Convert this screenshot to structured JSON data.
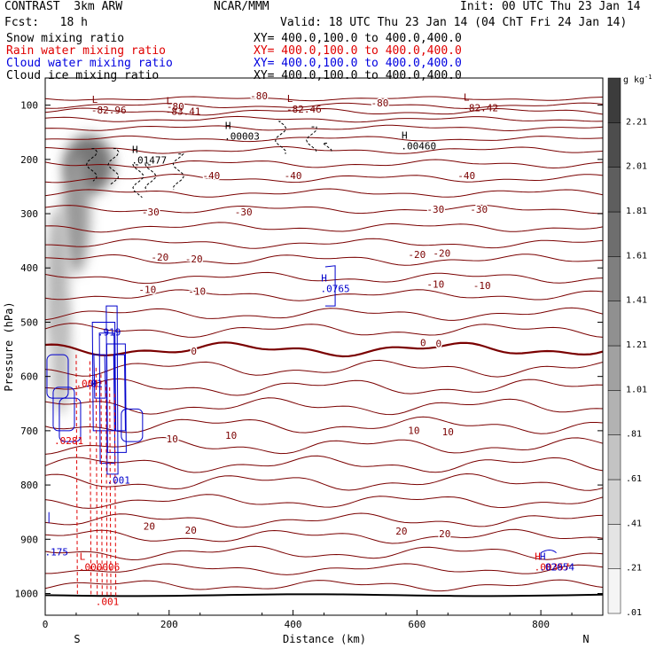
{
  "header": {
    "left1": "CONTRAST  3km ARW",
    "center1": "NCAR/MMM",
    "right1": "Init: 00 UTC Thu 23 Jan 14",
    "left2": "Fcst:   18 h",
    "right2": "Valid: 18 UTC Thu 23 Jan 14 (04 ChT Fri 24 Jan 14)",
    "fields": [
      {
        "name": "Snow mixing ratio",
        "xy": "XY= 400.0,100.0 to 400.0,400.0",
        "color": "#000000"
      },
      {
        "name": "Rain water mixing ratio",
        "xy": "XY= 400.0,100.0 to 400.0,400.0",
        "color": "#e00000"
      },
      {
        "name": "Cloud water mixing ratio",
        "xy": "XY= 400.0,100.0 to 400.0,400.0",
        "color": "#0000e0"
      },
      {
        "name": "Cloud ice mixing ratio",
        "xy": "XY= 400.0,100.0 to 400.0,400.0",
        "color": "#000000"
      }
    ]
  },
  "chart_data": {
    "type": "cross-section",
    "xlabel": "Distance (km)",
    "ylabel": "Pressure (hPa)",
    "xlim": [
      0,
      900
    ],
    "ylim": [
      1040,
      50
    ],
    "xticks": [
      0,
      200,
      400,
      600,
      800
    ],
    "yticks": [
      100,
      200,
      300,
      400,
      500,
      600,
      700,
      800,
      900,
      1000
    ],
    "endpoint_left": "S",
    "endpoint_right": "N",
    "colorbar": {
      "units": "g kg",
      "units_exp": "-1",
      "ticks": [
        "2.21",
        "2.01",
        "1.81",
        "1.61",
        "1.41",
        "1.21",
        "1.01",
        ".81",
        ".61",
        ".41",
        ".21",
        ".01"
      ],
      "levels": [
        0.01,
        0.21,
        0.41,
        0.61,
        0.81,
        1.01,
        1.21,
        1.41,
        1.61,
        1.81,
        2.01,
        2.21,
        2.41
      ]
    },
    "temperature_contours": {
      "color": "#7a0000",
      "lines": [
        {
          "p": 88,
          "amp": 1.5
        },
        {
          "p": 101,
          "amp": 2
        },
        {
          "p": 112,
          "amp": 2.5
        },
        {
          "p": 126,
          "amp": 2
        },
        {
          "p": 142,
          "amp": 2
        },
        {
          "p": 162,
          "amp": 2
        },
        {
          "p": 183,
          "amp": 2.5
        },
        {
          "p": 208,
          "amp": 3
        },
        {
          "p": 235,
          "amp": 3
        },
        {
          "p": 262,
          "amp": 3
        },
        {
          "p": 292,
          "amp": 3
        },
        {
          "p": 325,
          "amp": 3.5
        },
        {
          "p": 355,
          "amp": 3.5
        },
        {
          "p": 385,
          "amp": 4
        },
        {
          "p": 418,
          "amp": 4
        },
        {
          "p": 450,
          "amp": 4
        },
        {
          "p": 485,
          "amp": 4.5
        },
        {
          "p": 515,
          "amp": 5
        },
        {
          "p": 550,
          "amp": 5,
          "bold": true
        },
        {
          "p": 585,
          "amp": 6
        },
        {
          "p": 620,
          "amp": 6
        },
        {
          "p": 655,
          "amp": 6
        },
        {
          "p": 690,
          "amp": 6
        },
        {
          "p": 728,
          "amp": 6
        },
        {
          "p": 762,
          "amp": 6
        },
        {
          "p": 795,
          "amp": 6
        },
        {
          "p": 830,
          "amp": 5
        },
        {
          "p": 865,
          "amp": 5
        },
        {
          "p": 895,
          "amp": 5
        },
        {
          "p": 925,
          "amp": 5
        },
        {
          "p": 955,
          "amp": 4
        },
        {
          "p": 985,
          "amp": 4
        }
      ],
      "labels": [
        {
          "x": 345,
          "p": 83,
          "text": "-80"
        },
        {
          "x": 540,
          "p": 96,
          "text": "-80"
        },
        {
          "x": 210,
          "p": 102,
          "text": "-80"
        },
        {
          "x": 268,
          "p": 230,
          "text": "-40"
        },
        {
          "x": 400,
          "p": 230,
          "text": "-40"
        },
        {
          "x": 680,
          "p": 230,
          "text": "-40"
        },
        {
          "x": 170,
          "p": 297,
          "text": "-30"
        },
        {
          "x": 320,
          "p": 297,
          "text": "-30"
        },
        {
          "x": 630,
          "p": 292,
          "text": "-30"
        },
        {
          "x": 700,
          "p": 292,
          "text": "-30"
        },
        {
          "x": 185,
          "p": 380,
          "text": "-20"
        },
        {
          "x": 240,
          "p": 383,
          "text": "-20"
        },
        {
          "x": 600,
          "p": 375,
          "text": "-20"
        },
        {
          "x": 640,
          "p": 373,
          "text": "-20"
        },
        {
          "x": 165,
          "p": 440,
          "text": "-10"
        },
        {
          "x": 245,
          "p": 443,
          "text": "-10"
        },
        {
          "x": 630,
          "p": 430,
          "text": "-10"
        },
        {
          "x": 705,
          "p": 432,
          "text": "-10"
        },
        {
          "x": 240,
          "p": 553,
          "text": "0"
        },
        {
          "x": 610,
          "p": 538,
          "text": "0"
        },
        {
          "x": 635,
          "p": 539,
          "text": "0"
        },
        {
          "x": 205,
          "p": 715,
          "text": "10"
        },
        {
          "x": 300,
          "p": 708,
          "text": "10"
        },
        {
          "x": 595,
          "p": 699,
          "text": "10"
        },
        {
          "x": 650,
          "p": 702,
          "text": "10"
        },
        {
          "x": 168,
          "p": 876,
          "text": "20"
        },
        {
          "x": 235,
          "p": 883,
          "text": "20"
        },
        {
          "x": 575,
          "p": 885,
          "text": "20"
        },
        {
          "x": 645,
          "p": 890,
          "text": "20"
        }
      ]
    },
    "extrema_labels": [
      {
        "x": 80,
        "p": 96,
        "mark": "L",
        "value": "-82.96",
        "color": "#7a0000"
      },
      {
        "x": 200,
        "p": 98,
        "mark": "L",
        "value": "-83.41",
        "color": "#7a0000"
      },
      {
        "x": 395,
        "p": 94,
        "mark": "L",
        "value": "-82.46",
        "color": "#7a0000"
      },
      {
        "x": 680,
        "p": 92,
        "mark": "L",
        "value": "-82.42",
        "color": "#7a0000"
      },
      {
        "x": 295,
        "p": 144,
        "mark": "H",
        "value": ".00003",
        "color": "#000000"
      },
      {
        "x": 580,
        "p": 162,
        "mark": "H",
        "value": ".00460",
        "color": "#000000"
      },
      {
        "x": 145,
        "p": 188,
        "mark": "H",
        "value": ".01477",
        "color": "#000000"
      },
      {
        "x": 450,
        "p": 425,
        "mark": "H",
        "value": ".0765",
        "color": "#0000cc"
      },
      {
        "x": 90,
        "p": 505,
        "mark": "",
        "value": ".919",
        "color": "#0000cc"
      },
      {
        "x": 55,
        "p": 600,
        "mark": "",
        "value": ".001",
        "color": "#e00000"
      },
      {
        "x": 70,
        "p": 600,
        "mark": "",
        "value": ".01",
        "color": "#0000cc"
      },
      {
        "x": 20,
        "p": 705,
        "mark": "",
        "value": ".0281",
        "color": "#e00000"
      },
      {
        "x": 105,
        "p": 778,
        "mark": "",
        "value": ".001",
        "color": "#0000cc"
      },
      {
        "x": 5,
        "p": 910,
        "mark": "",
        "value": ".175",
        "color": "#0000cc"
      },
      {
        "x": 60,
        "p": 938,
        "mark": "L",
        "value": ".000006",
        "color": "#e00000"
      },
      {
        "x": 87,
        "p": 1002,
        "mark": "",
        "value": ".001",
        "color": "#e00000"
      },
      {
        "x": 795,
        "p": 938,
        "mark": "H",
        "value": ".00357",
        "color": "#e00000"
      },
      {
        "x": 803,
        "p": 938,
        "mark": "H",
        "value": ".02054",
        "color": "#0000cc"
      }
    ],
    "snow_shading": [
      {
        "x": 70,
        "p": 210,
        "rx": 40,
        "rp": 55,
        "level": 1.3
      },
      {
        "x": 50,
        "p": 300,
        "rx": 22,
        "rp": 110,
        "level": 0.9
      },
      {
        "x": 20,
        "p": 420,
        "rx": 18,
        "rp": 130,
        "level": 0.6
      },
      {
        "x": 25,
        "p": 560,
        "rx": 16,
        "rp": 110,
        "level": 0.5
      }
    ]
  }
}
